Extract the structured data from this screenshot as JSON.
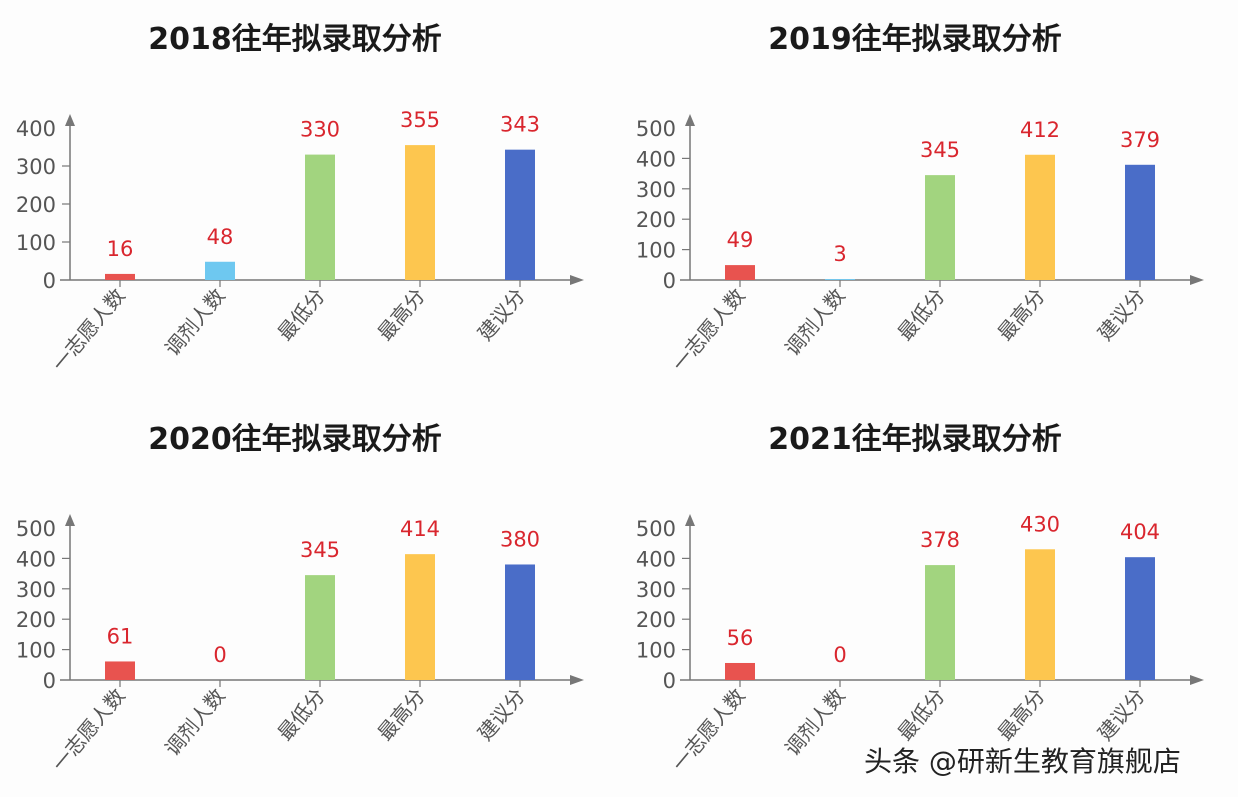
{
  "chart_data": [
    {
      "type": "bar",
      "title": "2018往年拟录取分析",
      "categories": [
        "一志愿人数",
        "调剂人数",
        "最低分",
        "最高分",
        "建议分"
      ],
      "values": [
        16,
        48,
        330,
        355,
        343
      ],
      "colors": [
        "#e8534f",
        "#6ec8f0",
        "#a2d47f",
        "#fdc64f",
        "#4a6dc8"
      ],
      "yticks": [
        0,
        100,
        200,
        300,
        400
      ],
      "ylim": [
        0,
        400
      ],
      "xlabel": "",
      "ylabel": "",
      "grid": false,
      "legend": "none"
    },
    {
      "type": "bar",
      "title": "2019往年拟录取分析",
      "categories": [
        "一志愿人数",
        "调剂人数",
        "最低分",
        "最高分",
        "建议分"
      ],
      "values": [
        49,
        3,
        345,
        412,
        379
      ],
      "colors": [
        "#e8534f",
        "#6ec8f0",
        "#a2d47f",
        "#fdc64f",
        "#4a6dc8"
      ],
      "yticks": [
        0,
        100,
        200,
        300,
        400,
        500
      ],
      "ylim": [
        0,
        500
      ],
      "xlabel": "",
      "ylabel": "",
      "grid": false,
      "legend": "none"
    },
    {
      "type": "bar",
      "title": "2020往年拟录取分析",
      "categories": [
        "一志愿人数",
        "调剂人数",
        "最低分",
        "最高分",
        "建议分"
      ],
      "values": [
        61,
        0,
        345,
        414,
        380
      ],
      "colors": [
        "#e8534f",
        "#6ec8f0",
        "#a2d47f",
        "#fdc64f",
        "#4a6dc8"
      ],
      "yticks": [
        0,
        100,
        200,
        300,
        400,
        500
      ],
      "ylim": [
        0,
        500
      ],
      "xlabel": "",
      "ylabel": "",
      "grid": false,
      "legend": "none"
    },
    {
      "type": "bar",
      "title": "2021往年拟录取分析",
      "categories": [
        "一志愿人数",
        "调剂人数",
        "最低分",
        "最高分",
        "建议分"
      ],
      "values": [
        56,
        0,
        378,
        430,
        404
      ],
      "colors": [
        "#e8534f",
        "#6ec8f0",
        "#a2d47f",
        "#fdc64f",
        "#4a6dc8"
      ],
      "yticks": [
        0,
        100,
        200,
        300,
        400,
        500
      ],
      "ylim": [
        0,
        500
      ],
      "xlabel": "",
      "ylabel": "",
      "grid": false,
      "legend": "none"
    }
  ],
  "style": {
    "label_color": "#d9262e",
    "axis_color": "#777777",
    "tick_text_color": "#555555"
  },
  "watermark": "头条 @研新生教育旗舰店"
}
